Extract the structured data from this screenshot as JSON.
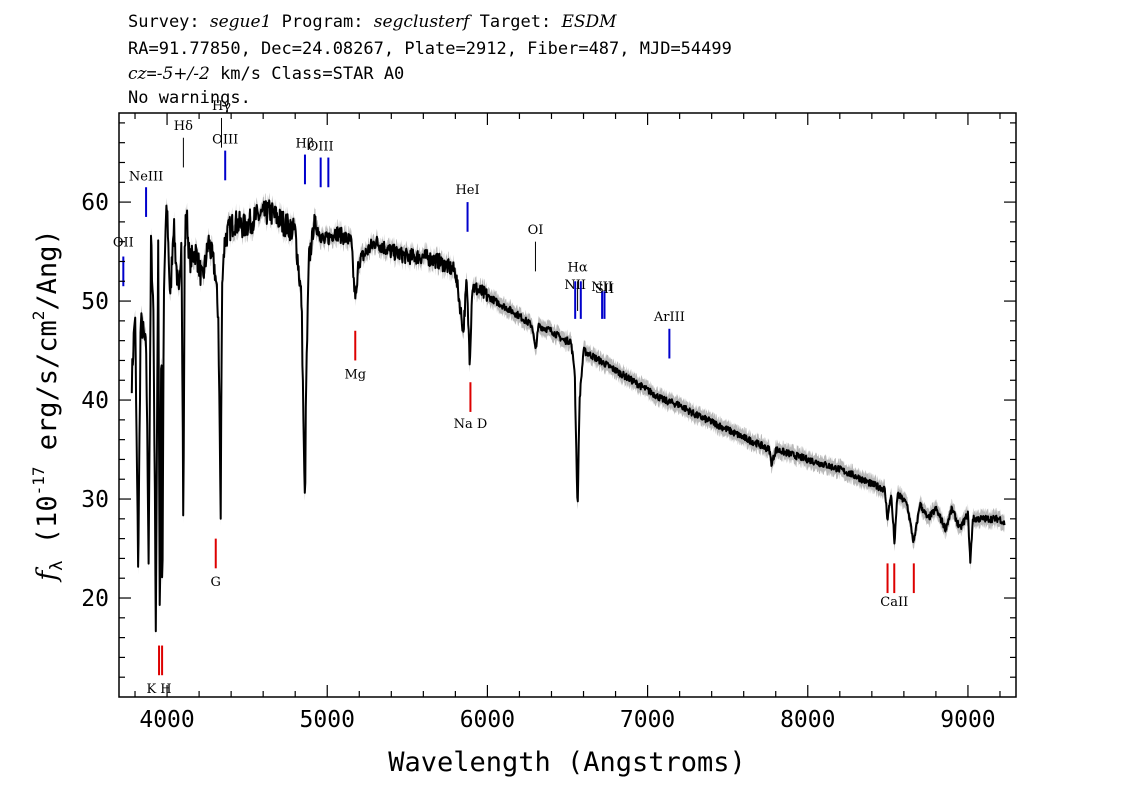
{
  "header": {
    "l1": {
      "a": "Survey: ",
      "survey": "segue1",
      "b": " Program: ",
      "program": "segclusterf",
      "c": " Target: ",
      "target": "ESDM"
    },
    "l2": "RA=91.77850, Dec=24.08267, Plate=2912, Fiber=487, MJD=54499",
    "l3": {
      "cz": "cz",
      "eq": "=",
      "val": "-5+/-2",
      "rest": " km/s Class=STAR A0"
    },
    "l4": "No warnings."
  },
  "chart_data": {
    "type": "line",
    "title": "",
    "xlabel": "Wavelength (Angstroms)",
    "ylabel": {
      "pre": "f",
      "sub": "λ",
      "mid": " (10",
      "sup": "-17",
      "post": " erg/s/cm",
      "sup2": "2",
      "end": "/Ang)"
    },
    "xlim": [
      3700,
      9300
    ],
    "ylim": [
      10,
      69
    ],
    "x_ticks": [
      4000,
      5000,
      6000,
      7000,
      8000,
      9000
    ],
    "y_ticks": [
      20,
      30,
      40,
      50,
      60
    ],
    "grid": false,
    "legend": "none",
    "colors": {
      "spectrum": "#000000",
      "error_band": "#b8b8b8",
      "emission": "#0000cc",
      "absorption": "#dd0000",
      "other": "#000000"
    },
    "series": [
      {
        "x": [
          3780,
          3800,
          3820,
          3835,
          3850,
          3870,
          3885,
          3900,
          3915,
          3930,
          3945,
          3955,
          3965,
          3970,
          3980,
          3990,
          4000,
          4020,
          4040,
          4060,
          4075,
          4090,
          4102,
          4110,
          4120,
          4140,
          4180,
          4220,
          4260,
          4300,
          4320,
          4335,
          4340,
          4345,
          4360,
          4380,
          4420,
          4480,
          4560,
          4640,
          4720,
          4800,
          4840,
          4855,
          4861,
          4867,
          4885,
          4920,
          4980,
          5050,
          5150,
          5170,
          5183,
          5195,
          5300,
          5400,
          5500,
          5600,
          5700,
          5800,
          5850,
          5870,
          5890,
          5896,
          5905,
          5950,
          6000,
          6100,
          6200,
          6280,
          6300,
          6320,
          6400,
          6480,
          6520,
          6545,
          6563,
          6575,
          6600,
          6650,
          6700,
          6800,
          6900,
          7000,
          7100,
          7200,
          7300,
          7400,
          7500,
          7600,
          7700,
          7760,
          7775,
          7800,
          7900,
          8000,
          8100,
          8200,
          8300,
          8400,
          8480,
          8498,
          8520,
          8542,
          8560,
          8620,
          8662,
          8700,
          8750,
          8800,
          8860,
          8900,
          8950,
          9000,
          9015,
          9030,
          9100,
          9150,
          9200,
          9230
        ],
        "y": [
          42,
          49,
          22.5,
          48,
          47,
          45,
          24,
          56,
          49,
          17,
          57,
          15.5,
          50,
          16,
          50,
          57,
          59.5,
          50,
          58,
          53,
          50,
          57,
          26.5,
          55,
          59.5,
          54,
          55,
          52,
          56,
          53,
          48.5,
          28,
          44,
          53,
          56,
          57,
          58,
          57.5,
          58.5,
          59,
          58,
          57,
          50,
          34,
          29,
          40,
          54,
          58,
          56,
          57,
          56,
          51,
          50.5,
          54,
          56,
          55,
          54.5,
          54.5,
          54,
          53,
          47,
          52,
          44,
          47,
          51.5,
          51,
          50.5,
          49.5,
          48.5,
          47.5,
          45,
          47.5,
          47,
          46,
          46,
          43,
          28.5,
          40,
          45,
          44.5,
          44,
          43,
          42,
          41,
          40,
          39.5,
          38.5,
          37.8,
          37,
          36.2,
          35.5,
          35,
          33.5,
          35,
          34.5,
          34,
          33.5,
          33,
          32.3,
          31.5,
          31,
          28,
          30.5,
          25.5,
          30.5,
          29.5,
          25.5,
          29.5,
          28,
          29,
          27,
          29,
          27,
          28.5,
          23.5,
          28,
          28,
          28,
          28,
          27.5
        ]
      }
    ],
    "lines": [
      {
        "label": "OII",
        "wave": 3727,
        "color": "emission",
        "y1": 51.5,
        "y2": 54.5,
        "ylab": 55.5
      },
      {
        "label": "NeIII",
        "wave": 3869,
        "color": "emission",
        "y1": 58.5,
        "y2": 61.5,
        "ylab": 62.2
      },
      {
        "label": "Hδ",
        "wave": 4102,
        "color": "other",
        "y1": 63.5,
        "y2": 66.5,
        "ylab": 67.3
      },
      {
        "label": "Hγ",
        "wave": 4340,
        "color": "other",
        "y1": 65.5,
        "y2": 68.5,
        "ylab": 69.3
      },
      {
        "label": "OIII",
        "wave": 4363,
        "color": "emission",
        "y1": 62.2,
        "y2": 65.2,
        "ylab": 65.9
      },
      {
        "label": "Hβ",
        "wave": 4861,
        "color": "emission",
        "y1": 61.8,
        "y2": 64.8,
        "ylab": 65.5
      },
      {
        "label": "OIII",
        "wave": 4959,
        "color": "emission",
        "y1": 61.5,
        "y2": 64.5,
        "ylab": 65.2
      },
      {
        "label": "",
        "wave": 5007,
        "color": "emission",
        "y1": 61.5,
        "y2": 64.5,
        "ylab": 65.2
      },
      {
        "label": "HeI",
        "wave": 5876,
        "color": "emission",
        "y1": 57,
        "y2": 60,
        "ylab": 60.8
      },
      {
        "label": "OI",
        "wave": 6300,
        "color": "other",
        "y1": 53,
        "y2": 56,
        "ylab": 56.8
      },
      {
        "label": "NII",
        "wave": 6548,
        "color": "emission",
        "y1": 48.2,
        "y2": 52,
        "ylab": 51.2
      },
      {
        "label": "Hα",
        "wave": 6563,
        "color": "other",
        "y1": 49,
        "y2": 52,
        "ylab": 53
      },
      {
        "label": "",
        "wave": 6583,
        "color": "emission",
        "y1": 48.2,
        "y2": 52,
        "ylab": 51.2
      },
      {
        "label": "NII",
        "wave": 6716,
        "color": "emission",
        "y1": 48.2,
        "y2": 51,
        "ylab": 51
      },
      {
        "label": "SII",
        "wave": 6731,
        "color": "emission",
        "y1": 48.2,
        "y2": 51,
        "ylab": 50.8
      },
      {
        "label": "ArIII",
        "wave": 7136,
        "color": "emission",
        "y1": 44.2,
        "y2": 47.2,
        "ylab": 48
      },
      {
        "label": "Mg",
        "wave": 5175,
        "color": "absorption",
        "y1": 44,
        "y2": 47,
        "ylab": 42.2
      },
      {
        "label": "G",
        "wave": 4304,
        "color": "absorption",
        "y1": 23,
        "y2": 26,
        "ylab": 21.2
      },
      {
        "label": "Na D",
        "wave": 5894,
        "color": "absorption",
        "y1": 38.8,
        "y2": 41.8,
        "ylab": 37.2
      },
      {
        "label": "K H",
        "wave": 3950,
        "color": "absorption",
        "y1": 12.2,
        "y2": 15.2,
        "ylab": 10.4
      },
      {
        "label": "",
        "wave": 3969,
        "color": "absorption",
        "y1": 12.2,
        "y2": 15.2,
        "ylab": 0
      },
      {
        "label": "CaII",
        "wave": 8540,
        "color": "absorption",
        "y1": 20.5,
        "y2": 23.5,
        "ylab": 19.2
      },
      {
        "label": "",
        "wave": 8498,
        "color": "absorption",
        "y1": 20.5,
        "y2": 23.5,
        "ylab": 0
      },
      {
        "label": "",
        "wave": 8662,
        "color": "absorption",
        "y1": 20.5,
        "y2": 23.5,
        "ylab": 0
      }
    ]
  }
}
